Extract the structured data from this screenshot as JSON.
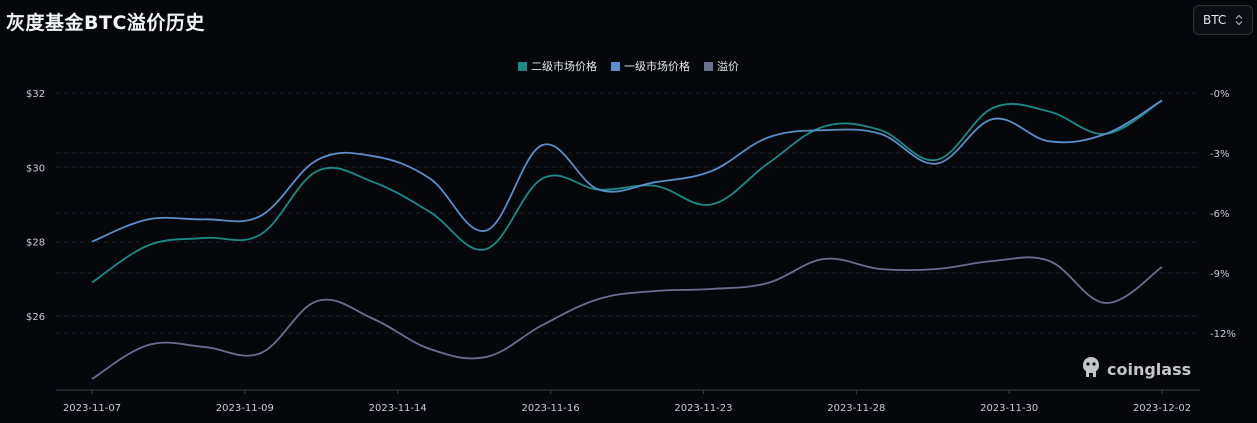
{
  "title": "灰度基金BTC溢价历史",
  "selector": {
    "value": "BTC"
  },
  "legend": [
    {
      "label": "二级市场价格",
      "color": "#1a8a86"
    },
    {
      "label": "一级市场价格",
      "color": "#5b8fc9"
    },
    {
      "label": "溢价",
      "color": "#6b6f8e"
    }
  ],
  "watermark": "coinglass",
  "chart_data": {
    "type": "line",
    "x": [
      "2023-11-07",
      "2023-11-08",
      "2023-11-09",
      "2023-11-10",
      "2023-11-13",
      "2023-11-14",
      "2023-11-15",
      "2023-11-16",
      "2023-11-17",
      "2023-11-20",
      "2023-11-21",
      "2023-11-22",
      "2023-11-23",
      "2023-11-24",
      "2023-11-27",
      "2023-11-28",
      "2023-11-29",
      "2023-11-30",
      "2023-12-01",
      "2023-12-02"
    ],
    "xticks": [
      "2023-11-07",
      "2023-11-09",
      "2023-11-14",
      "2023-11-16",
      "2023-11-23",
      "2023-11-28",
      "2023-11-30",
      "2023-12-02"
    ],
    "series": [
      {
        "name": "二级市场价格",
        "axis": "left",
        "color": "#1a8a86",
        "values": [
          26.9,
          27.9,
          28.1,
          28.2,
          29.9,
          29.6,
          28.8,
          27.8,
          29.7,
          29.4,
          29.5,
          29.0,
          30.1,
          31.1,
          31.0,
          30.2,
          31.6,
          31.5,
          30.9,
          31.8
        ]
      },
      {
        "name": "一级市场价格",
        "axis": "left",
        "color": "#5b8fc9",
        "values": [
          28.0,
          28.6,
          28.6,
          28.7,
          30.2,
          30.3,
          29.7,
          28.3,
          30.6,
          29.4,
          29.6,
          29.9,
          30.8,
          31.0,
          30.9,
          30.1,
          31.3,
          30.7,
          30.9,
          31.8
        ]
      },
      {
        "name": "溢价",
        "axis": "right",
        "color": "#6b6f8e",
        "values": [
          -14.3,
          -12.6,
          -12.7,
          -13.0,
          -10.4,
          -11.3,
          -12.8,
          -13.2,
          -11.6,
          -10.3,
          -9.9,
          -9.8,
          -9.5,
          -8.3,
          -8.8,
          -8.8,
          -8.4,
          -8.4,
          -10.5,
          -8.7
        ]
      }
    ],
    "ylim_left": [
      25,
      32
    ],
    "yticks_left": [
      "$26",
      "$28",
      "$30",
      "$32"
    ],
    "yticks_left_values": [
      26,
      28,
      30,
      32
    ],
    "ylim_right": [
      -15,
      0
    ],
    "yticks_right": [
      "-12%",
      "-9%",
      "-6%",
      "-3%",
      "-0%"
    ],
    "yticks_right_values": [
      -12,
      -9,
      -6,
      -3,
      0
    ],
    "grid": true,
    "legend_position": "top-center"
  }
}
